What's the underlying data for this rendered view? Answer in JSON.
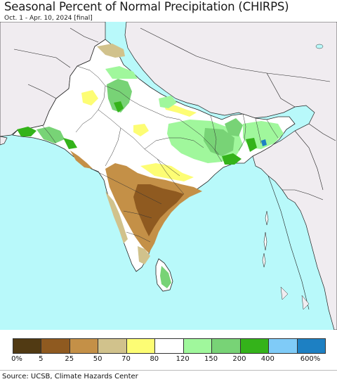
{
  "header": {
    "title": "Seasonal Percent of Normal Precipitation (CHIRPS)",
    "subtitle": "Oct. 1 - Apr. 10, 2024 [final]"
  },
  "legend": {
    "colors": [
      "#513a13",
      "#8f5a20",
      "#c49047",
      "#d1c28c",
      "#fdfd74",
      "#ffffff",
      "#a0f79c",
      "#78d376",
      "#34b31a",
      "#7fcbf7",
      "#1d80c3"
    ],
    "ticks": [
      "0%",
      "5",
      "25",
      "50",
      "70",
      "80",
      "120",
      "150",
      "200",
      "400",
      "600%"
    ]
  },
  "footer": {
    "source": "Source: UCSB, Climate Hazards Center"
  },
  "map": {
    "ocean_color": "#b8f9fa",
    "land_outside_color": "#f0ecf0"
  }
}
